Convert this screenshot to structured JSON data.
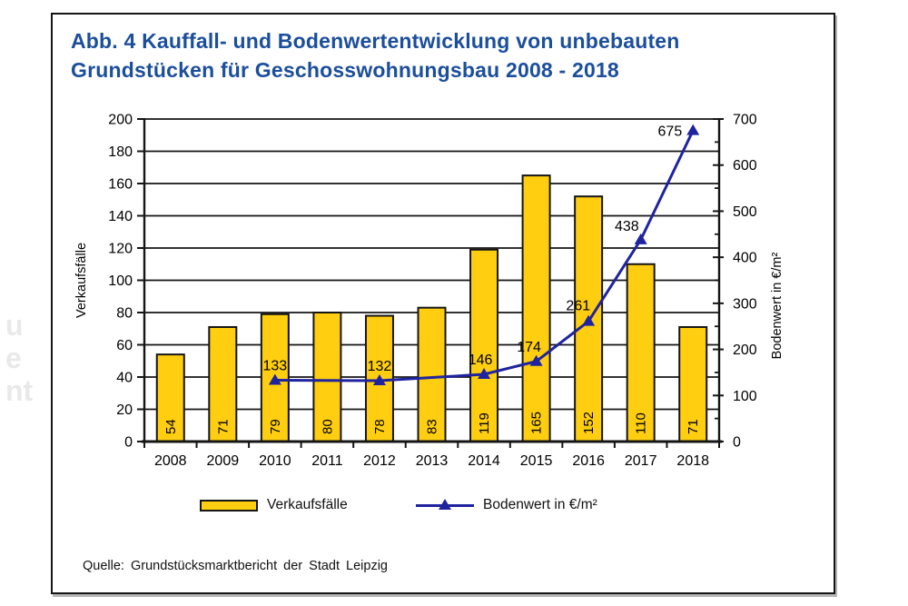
{
  "colors": {
    "title_blue": "#1b4e9b",
    "bar_yellow": "#ffce10",
    "line_navy": "#1f249e",
    "axis_black": "#151515"
  },
  "figure": {
    "title_lines": [
      "Abb. 4 Kauffall- und Bodenwertentwicklung von unbebauten",
      "Grundstücken für Geschosswohnungsbau 2008 - 2018"
    ],
    "source": "Quelle: Grundstücksmarktbericht der Stadt Leipzig"
  },
  "legend": [
    {
      "label": "Verkaufsfälle",
      "swatch": "bar",
      "color": "#ffce10"
    },
    {
      "label": "Bodenwert in €/m²",
      "swatch": "line-triangle",
      "color": "#1f249e"
    }
  ],
  "margin_watermark": [
    "u",
    "e",
    "nt"
  ],
  "chart_data": {
    "type": "bar+line",
    "title": "Abb. 4 Kauffall- und Bodenwertentwicklung von unbebauten Grundstücken für Geschosswohnungsbau 2008 - 2018",
    "categories": [
      "2008",
      "2009",
      "2010",
      "2011",
      "2012",
      "2013",
      "2014",
      "2015",
      "2016",
      "2017",
      "2018"
    ],
    "series": [
      {
        "name": "Verkaufsfälle",
        "type": "bar",
        "axis": "left",
        "color": "#ffce10",
        "values": [
          54,
          71,
          79,
          80,
          78,
          83,
          119,
          165,
          152,
          110,
          71
        ]
      },
      {
        "name": "Bodenwert in €/m²",
        "type": "line",
        "axis": "right",
        "color": "#1f249e",
        "marker": "triangle-up",
        "values": [
          null,
          null,
          133,
          null,
          132,
          null,
          146,
          174,
          261,
          438,
          675
        ]
      }
    ],
    "left_axis": {
      "label": "Verkaufsfälle",
      "min": 0,
      "max": 200,
      "step": 20
    },
    "right_axis": {
      "label": "Bodenwert in  €/m²",
      "min": 0,
      "max": 700,
      "step": 100,
      "minor_step": 50
    },
    "grid": true,
    "data_labels": true,
    "legend_position": "bottom"
  }
}
